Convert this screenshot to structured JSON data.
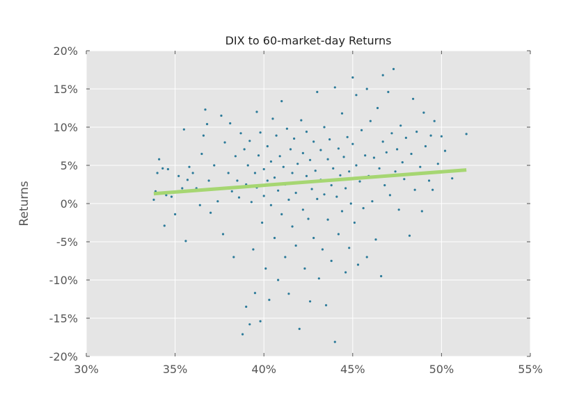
{
  "chart_data": {
    "type": "scatter",
    "title": "DIX to 60-market-day Returns",
    "xlabel": "",
    "ylabel": "Returns",
    "xlim": [
      0.3,
      0.55
    ],
    "ylim": [
      -0.2,
      0.2
    ],
    "x_ticks": [
      {
        "value": 0.3,
        "label": "30%"
      },
      {
        "value": 0.35,
        "label": "35%"
      },
      {
        "value": 0.4,
        "label": "40%"
      },
      {
        "value": 0.45,
        "label": "45%"
      },
      {
        "value": 0.5,
        "label": "50%"
      },
      {
        "value": 0.55,
        "label": "55%"
      }
    ],
    "y_ticks": [
      {
        "value": 0.2,
        "label": "20%"
      },
      {
        "value": 0.15,
        "label": "15%"
      },
      {
        "value": 0.1,
        "label": "10%"
      },
      {
        "value": 0.05,
        "label": "5%"
      },
      {
        "value": 0.0,
        "label": "0%"
      },
      {
        "value": -0.05,
        "label": "-5%"
      },
      {
        "value": -0.1,
        "label": "-10%"
      },
      {
        "value": -0.15,
        "label": "-15%"
      },
      {
        "value": -0.2,
        "label": "-20%"
      }
    ],
    "grid": true,
    "series": [
      {
        "kind": "points",
        "color": "#2b7a99",
        "points": [
          [
            0.338,
            0.005
          ],
          [
            0.339,
            0.016
          ],
          [
            0.34,
            0.04
          ],
          [
            0.341,
            0.058
          ],
          [
            0.343,
            0.046
          ],
          [
            0.344,
            -0.029
          ],
          [
            0.345,
            0.011
          ],
          [
            0.346,
            0.045
          ],
          [
            0.348,
            0.009
          ],
          [
            0.35,
            -0.014
          ],
          [
            0.352,
            0.036
          ],
          [
            0.354,
            0.02
          ],
          [
            0.355,
            0.097
          ],
          [
            0.356,
            -0.049
          ],
          [
            0.357,
            0.031
          ],
          [
            0.358,
            0.048
          ],
          [
            0.36,
            0.04
          ],
          [
            0.362,
            0.02
          ],
          [
            0.364,
            -0.002
          ],
          [
            0.365,
            0.065
          ],
          [
            0.366,
            0.089
          ],
          [
            0.367,
            0.123
          ],
          [
            0.368,
            0.104
          ],
          [
            0.369,
            0.03
          ],
          [
            0.37,
            -0.012
          ],
          [
            0.372,
            0.05
          ],
          [
            0.374,
            0.003
          ],
          [
            0.376,
            0.115
          ],
          [
            0.377,
            -0.04
          ],
          [
            0.378,
            0.08
          ],
          [
            0.38,
            0.04
          ],
          [
            0.381,
            0.105
          ],
          [
            0.382,
            0.016
          ],
          [
            0.383,
            -0.07
          ],
          [
            0.384,
            0.062
          ],
          [
            0.385,
            0.03
          ],
          [
            0.386,
            0.008
          ],
          [
            0.387,
            0.092
          ],
          [
            0.388,
            -0.171
          ],
          [
            0.389,
            0.071
          ],
          [
            0.39,
            0.025
          ],
          [
            0.39,
            -0.135
          ],
          [
            0.391,
            0.05
          ],
          [
            0.392,
            -0.158
          ],
          [
            0.392,
            0.082
          ],
          [
            0.393,
            0.002
          ],
          [
            0.394,
            -0.06
          ],
          [
            0.395,
            0.04
          ],
          [
            0.395,
            -0.117
          ],
          [
            0.396,
            0.12
          ],
          [
            0.396,
            0.021
          ],
          [
            0.397,
            0.063
          ],
          [
            0.398,
            -0.154
          ],
          [
            0.398,
            0.093
          ],
          [
            0.399,
            -0.025
          ],
          [
            0.4,
            0.045
          ],
          [
            0.4,
            0.01
          ],
          [
            0.401,
            -0.085
          ],
          [
            0.402,
            0.075
          ],
          [
            0.402,
            0.03
          ],
          [
            0.403,
            -0.126
          ],
          [
            0.404,
            0.055
          ],
          [
            0.404,
            -0.002
          ],
          [
            0.405,
            0.111
          ],
          [
            0.406,
            0.034
          ],
          [
            0.406,
            -0.045
          ],
          [
            0.407,
            0.089
          ],
          [
            0.408,
            0.017
          ],
          [
            0.408,
            -0.1
          ],
          [
            0.409,
            0.062
          ],
          [
            0.41,
            0.134
          ],
          [
            0.41,
            -0.014
          ],
          [
            0.411,
            0.048
          ],
          [
            0.412,
            -0.07
          ],
          [
            0.412,
            0.025
          ],
          [
            0.413,
            0.098
          ],
          [
            0.414,
            0.005
          ],
          [
            0.414,
            -0.118
          ],
          [
            0.415,
            0.071
          ],
          [
            0.416,
            0.04
          ],
          [
            0.416,
            -0.03
          ],
          [
            0.417,
            0.085
          ],
          [
            0.418,
            0.014
          ],
          [
            0.418,
            -0.055
          ],
          [
            0.419,
            0.052
          ],
          [
            0.42,
            -0.164
          ],
          [
            0.42,
            0.028
          ],
          [
            0.421,
            0.109
          ],
          [
            0.422,
            -0.008
          ],
          [
            0.422,
            0.066
          ],
          [
            0.423,
            -0.085
          ],
          [
            0.424,
            0.036
          ],
          [
            0.424,
            0.094
          ],
          [
            0.425,
            -0.02
          ],
          [
            0.426,
            0.057
          ],
          [
            0.426,
            -0.128
          ],
          [
            0.427,
            0.019
          ],
          [
            0.428,
            0.081
          ],
          [
            0.428,
            -0.045
          ],
          [
            0.429,
            0.043
          ],
          [
            0.43,
            0.146
          ],
          [
            0.43,
            0.006
          ],
          [
            0.431,
            -0.098
          ],
          [
            0.432,
            0.07
          ],
          [
            0.432,
            0.031
          ],
          [
            0.433,
            -0.06
          ],
          [
            0.434,
            0.1
          ],
          [
            0.434,
            0.012
          ],
          [
            0.435,
            -0.133
          ],
          [
            0.436,
            0.058
          ],
          [
            0.436,
            -0.021
          ],
          [
            0.437,
            0.084
          ],
          [
            0.438,
            0.024
          ],
          [
            0.438,
            -0.075
          ],
          [
            0.439,
            0.046
          ],
          [
            0.44,
            0.152
          ],
          [
            0.44,
            -0.181
          ],
          [
            0.441,
            0.009
          ],
          [
            0.442,
            0.072
          ],
          [
            0.442,
            -0.04
          ],
          [
            0.443,
            0.037
          ],
          [
            0.444,
            0.118
          ],
          [
            0.444,
            -0.01
          ],
          [
            0.445,
            0.061
          ],
          [
            0.446,
            -0.09
          ],
          [
            0.446,
            0.02
          ],
          [
            0.447,
            0.087
          ],
          [
            0.448,
            0.042
          ],
          [
            0.448,
            -0.058
          ],
          [
            0.449,
            0.0
          ],
          [
            0.45,
            0.165
          ],
          [
            0.45,
            0.078
          ],
          [
            0.451,
            -0.025
          ],
          [
            0.452,
            0.05
          ],
          [
            0.452,
            0.142
          ],
          [
            0.453,
            -0.08
          ],
          [
            0.454,
            0.029
          ],
          [
            0.455,
            0.096
          ],
          [
            0.456,
            -0.006
          ],
          [
            0.457,
            0.063
          ],
          [
            0.458,
            0.15
          ],
          [
            0.458,
            -0.07
          ],
          [
            0.459,
            0.036
          ],
          [
            0.46,
            0.108
          ],
          [
            0.461,
            0.003
          ],
          [
            0.462,
            0.06
          ],
          [
            0.463,
            -0.047
          ],
          [
            0.464,
            0.125
          ],
          [
            0.465,
            0.046
          ],
          [
            0.466,
            -0.095
          ],
          [
            0.467,
            0.081
          ],
          [
            0.467,
            0.168
          ],
          [
            0.468,
            0.024
          ],
          [
            0.469,
            0.067
          ],
          [
            0.47,
            0.146
          ],
          [
            0.471,
            0.011
          ],
          [
            0.472,
            0.092
          ],
          [
            0.473,
            0.176
          ],
          [
            0.474,
            0.042
          ],
          [
            0.475,
            0.071
          ],
          [
            0.476,
            -0.008
          ],
          [
            0.477,
            0.102
          ],
          [
            0.478,
            0.054
          ],
          [
            0.479,
            0.032
          ],
          [
            0.48,
            0.086
          ],
          [
            0.482,
            -0.042
          ],
          [
            0.483,
            0.065
          ],
          [
            0.484,
            0.137
          ],
          [
            0.485,
            0.018
          ],
          [
            0.486,
            0.094
          ],
          [
            0.488,
            0.048
          ],
          [
            0.489,
            -0.01
          ],
          [
            0.49,
            0.119
          ],
          [
            0.491,
            0.075
          ],
          [
            0.493,
            0.03
          ],
          [
            0.494,
            0.089
          ],
          [
            0.495,
            0.018
          ],
          [
            0.496,
            0.108
          ],
          [
            0.498,
            0.052
          ],
          [
            0.5,
            0.088
          ],
          [
            0.502,
            0.069
          ],
          [
            0.506,
            0.033
          ],
          [
            0.514,
            0.091
          ]
        ]
      },
      {
        "kind": "trendline",
        "color": "#a6d672",
        "points": [
          [
            0.338,
            0.013
          ],
          [
            0.514,
            0.044
          ]
        ]
      }
    ]
  }
}
